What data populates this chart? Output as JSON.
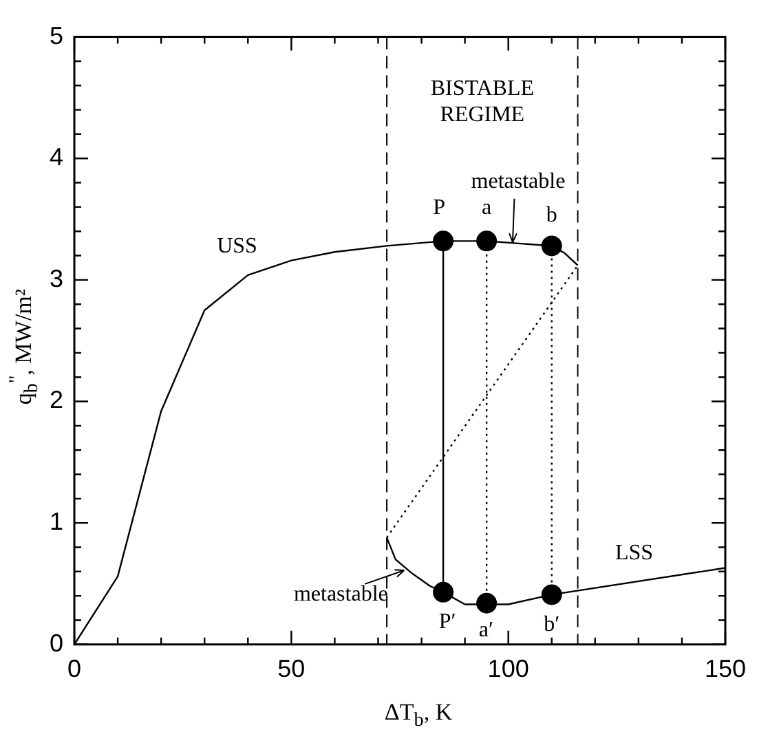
{
  "chart_data": {
    "type": "line",
    "xlabel": "ΔT$_{b}$, K",
    "ylabel": "q$_{b}$$^{\"}$, MW/m²",
    "xlim": [
      0,
      150
    ],
    "ylim": [
      0,
      5
    ],
    "xticks": [
      0,
      {
        "value": 10,
        "label": null
      },
      {
        "value": 20,
        "label": null
      },
      {
        "value": 30,
        "label": null
      },
      {
        "value": 40,
        "label": null
      },
      50,
      {
        "value": 60,
        "label": null
      },
      {
        "value": 70,
        "label": null
      },
      {
        "value": 80,
        "label": null
      },
      {
        "value": 90,
        "label": null
      },
      100,
      {
        "value": 110,
        "label": null
      },
      {
        "value": 120,
        "label": null
      },
      {
        "value": 130,
        "label": null
      },
      {
        "value": 140,
        "label": null
      },
      150
    ],
    "yticks": [
      0,
      {
        "value": 0.2,
        "label": null
      },
      {
        "value": 0.4,
        "label": null
      },
      {
        "value": 0.6,
        "label": null
      },
      {
        "value": 0.8,
        "label": null
      },
      1,
      {
        "value": 1.2,
        "label": null
      },
      {
        "value": 1.4,
        "label": null
      },
      {
        "value": 1.6,
        "label": null
      },
      {
        "value": 1.8,
        "label": null
      },
      2,
      {
        "value": 2.2,
        "label": null
      },
      {
        "value": 2.4,
        "label": null
      },
      {
        "value": 2.6,
        "label": null
      },
      {
        "value": 2.8,
        "label": null
      },
      3,
      {
        "value": 3.2,
        "label": null
      },
      {
        "value": 3.4,
        "label": null
      },
      {
        "value": 3.6,
        "label": null
      },
      {
        "value": 3.8,
        "label": null
      },
      4,
      {
        "value": 4.2,
        "label": null
      },
      {
        "value": 4.4,
        "label": null
      },
      {
        "value": 4.6,
        "label": null
      },
      {
        "value": 4.8,
        "label": null
      },
      5
    ],
    "marker": "none",
    "legend": false,
    "series": [
      {
        "color": "#000000",
        "line_style": "solid",
        "x": [
          0,
          10,
          20,
          30,
          40,
          50,
          60,
          72,
          85
        ],
        "values": [
          0,
          0.56,
          1.92,
          2.75,
          3.04,
          3.16,
          3.23,
          3.28,
          3.32
        ]
      },
      {
        "color": "#000000",
        "line_style": "solid",
        "x": [
          85,
          95,
          110,
          113,
          116
        ],
        "values": [
          3.32,
          3.32,
          3.28,
          3.22,
          3.12
        ]
      },
      {
        "color": "#000000",
        "line_style": "solid",
        "x": [
          72,
          74,
          78,
          82,
          85
        ],
        "values": [
          0.88,
          0.7,
          0.58,
          0.48,
          0.43
        ]
      },
      {
        "color": "#000000",
        "line_style": "solid",
        "x": [
          85,
          90,
          95,
          100,
          110,
          150
        ],
        "values": [
          0.43,
          0.33,
          0.33,
          0.33,
          0.41,
          0.63
        ]
      },
      {
        "color": "#000000",
        "line_style": "dotted",
        "x": [
          72,
          116
        ],
        "values": [
          0.88,
          3.12
        ]
      },
      {
        "color": "#000000",
        "line_style": "solid",
        "x": [
          85,
          85
        ],
        "values": [
          0.43,
          3.32
        ]
      },
      {
        "color": "#000000",
        "line_style": "dotted",
        "x": [
          95,
          95
        ],
        "values": [
          0.34,
          3.32
        ]
      },
      {
        "color": "#000000",
        "line_style": "dotted",
        "x": [
          110,
          110
        ],
        "values": [
          0.41,
          3.28
        ]
      },
      {
        "type": "scatter",
        "marker": "circle",
        "color": "#000000",
        "x": [
          85,
          95,
          110,
          85,
          95,
          110
        ],
        "values": [
          3.32,
          3.32,
          3.28,
          0.43,
          0.34,
          0.41
        ]
      }
    ],
    "ref_lines": [
      {
        "axis": "x",
        "value": 72,
        "color": "#000000",
        "line_style": "dashed"
      },
      {
        "axis": "x",
        "value": 116,
        "color": "#000000",
        "line_style": "dashed"
      }
    ],
    "annotations": [
      "BISTABLE REGIME",
      "USS",
      "LSS",
      {
        "text": "metastable",
        "x": 101,
        "y": 3.31
      },
      {
        "text": "metastable",
        "x": 76,
        "y": 0.61
      },
      {
        "text": "P",
        "x": 85,
        "y": 3.32
      },
      {
        "text": "a",
        "x": 95,
        "y": 3.32
      },
      {
        "text": "b",
        "x": 110,
        "y": 3.28
      },
      {
        "text": "P′",
        "x": 85,
        "y": 0.43
      },
      {
        "text": "a′",
        "x": 95.2,
        "y": 0.34
      },
      {
        "text": "b′",
        "x": 110,
        "y": 0.41
      }
    ]
  }
}
